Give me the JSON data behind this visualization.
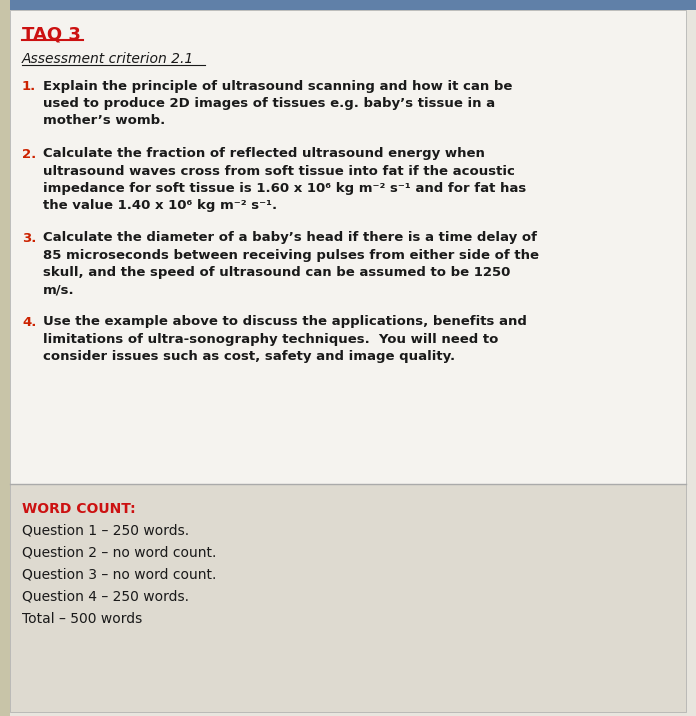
{
  "title": "TAQ 3",
  "subtitle": "Assessment criterion 2.1",
  "questions": [
    {
      "num": "1.",
      "text": "Explain the principle of ultrasound scanning and how it can be\nused to produce 2D images of tissues e.g. baby’s tissue in a\nmother’s womb."
    },
    {
      "num": "2.",
      "text": "Calculate the fraction of reflected ultrasound energy when\nultrasound waves cross from soft tissue into fat if the acoustic\nimpedance for soft tissue is 1.60 x 10⁶ kg m⁻² s⁻¹ and for fat has\nthe value 1.40 x 10⁶ kg m⁻² s⁻¹."
    },
    {
      "num": "3.",
      "text": "Calculate the diameter of a baby’s head if there is a time delay of\n85 microseconds between receiving pulses from either side of the\nskull, and the speed of ultrasound can be assumed to be 1250\nm/s."
    },
    {
      "num": "4.",
      "text": "Use the example above to discuss the applications, benefits and\nlimitations of ultra-sonography techniques.  You will need to\nconsider issues such as cost, safety and image quality."
    }
  ],
  "word_count_label": "WORD COUNT:",
  "word_count_items": [
    "Question 1 – 250 words.",
    "Question 2 – no word count.",
    "Question 3 – no word count.",
    "Question 4 – 250 words.",
    "Total – 500 words"
  ],
  "bg_main": "#e8e5de",
  "bg_white": "#f5f3ef",
  "bg_word_count": "#dedad0",
  "left_bar_color": "#c8c4a8",
  "title_color": "#cc1111",
  "text_color": "#1a1a1a",
  "word_count_title_color": "#cc1111",
  "top_bar_color": "#6080a8",
  "border_color": "#aaaaaa",
  "q_num_color": "#cc2200"
}
